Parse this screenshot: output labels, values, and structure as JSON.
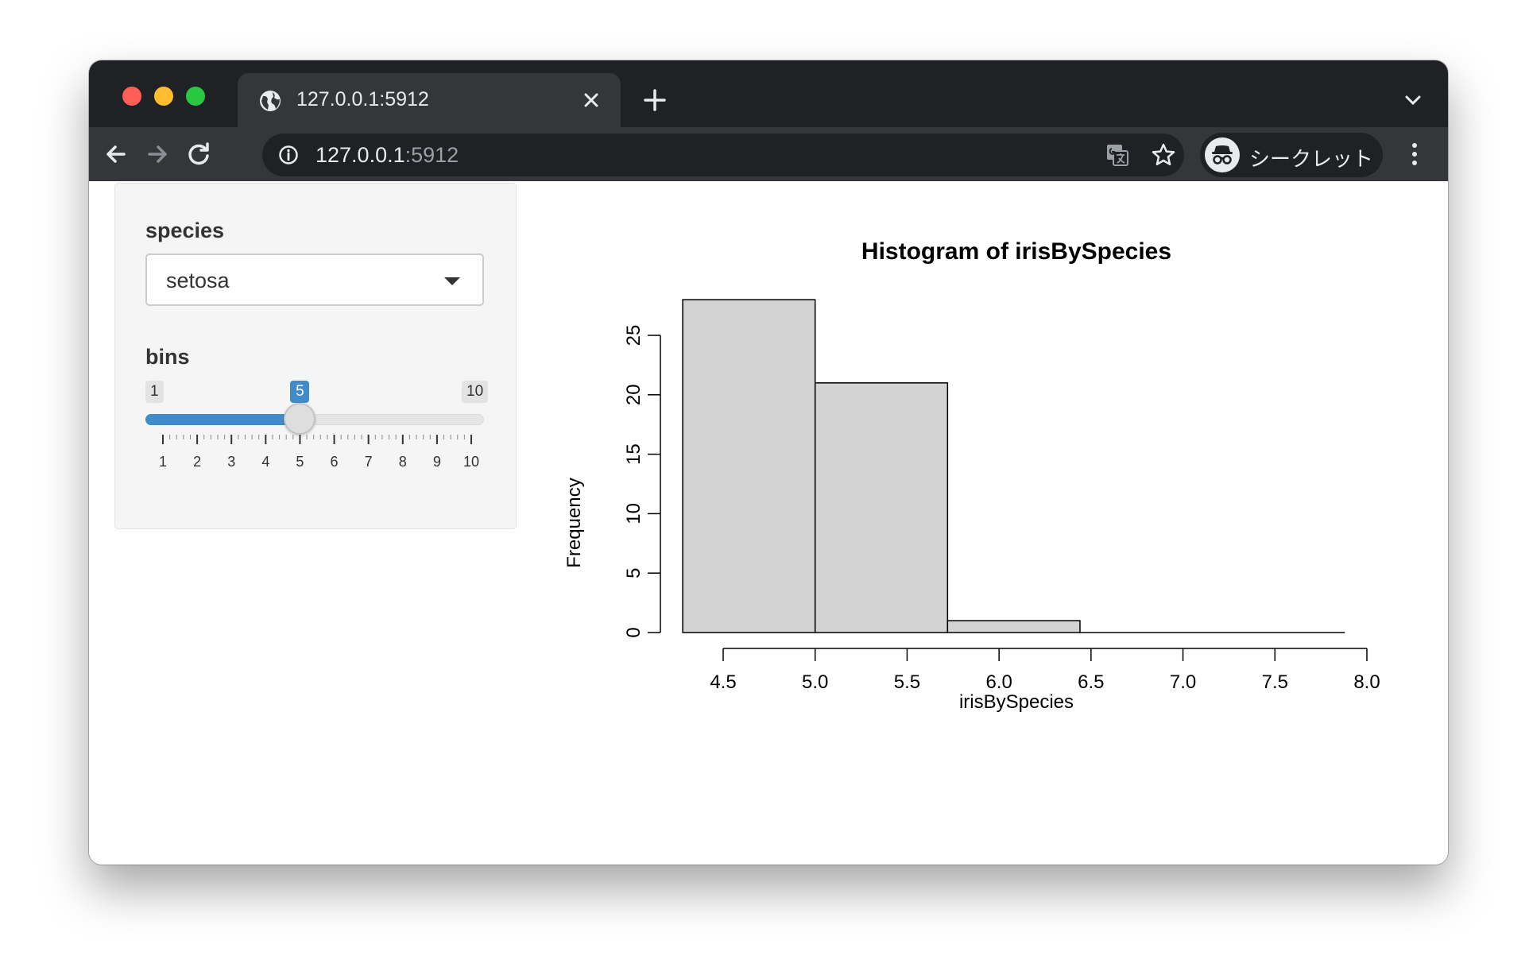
{
  "browser": {
    "tab_title": "127.0.0.1:5912",
    "url_host": "127.0.0.1",
    "url_port": ":5912",
    "profile_label": "シークレット",
    "icons": [
      "globe-icon",
      "close-icon",
      "plus-icon",
      "chevron-down-icon",
      "back-icon",
      "forward-icon",
      "reload-icon",
      "info-icon",
      "translate-icon",
      "star-icon",
      "incognito-icon",
      "more-icon"
    ]
  },
  "sidebar": {
    "species_label": "species",
    "species_value": "setosa",
    "bins_label": "bins",
    "bins_min": "1",
    "bins_max": "10",
    "bins_value": "5",
    "bins_ticks": [
      "1",
      "2",
      "3",
      "4",
      "5",
      "6",
      "7",
      "8",
      "9",
      "10"
    ],
    "accent_color": "#428bca"
  },
  "chart_data": {
    "type": "bar",
    "title": "Histogram of irisBySpecies",
    "xlabel": "irisBySpecies",
    "ylabel": "Frequency",
    "bin_edges": [
      4.28,
      5.0,
      5.72,
      6.44,
      7.16,
      7.88
    ],
    "values": [
      28,
      21,
      1,
      0,
      0
    ],
    "x_ticks": [
      "4.5",
      "5.0",
      "5.5",
      "6.0",
      "6.5",
      "7.0",
      "7.5",
      "8.0"
    ],
    "y_ticks": [
      "0",
      "5",
      "10",
      "15",
      "20",
      "25"
    ],
    "xlim": [
      4.5,
      8.0
    ],
    "ylim": [
      0,
      25
    ],
    "bar_color": "#d3d3d3",
    "grid": false
  }
}
